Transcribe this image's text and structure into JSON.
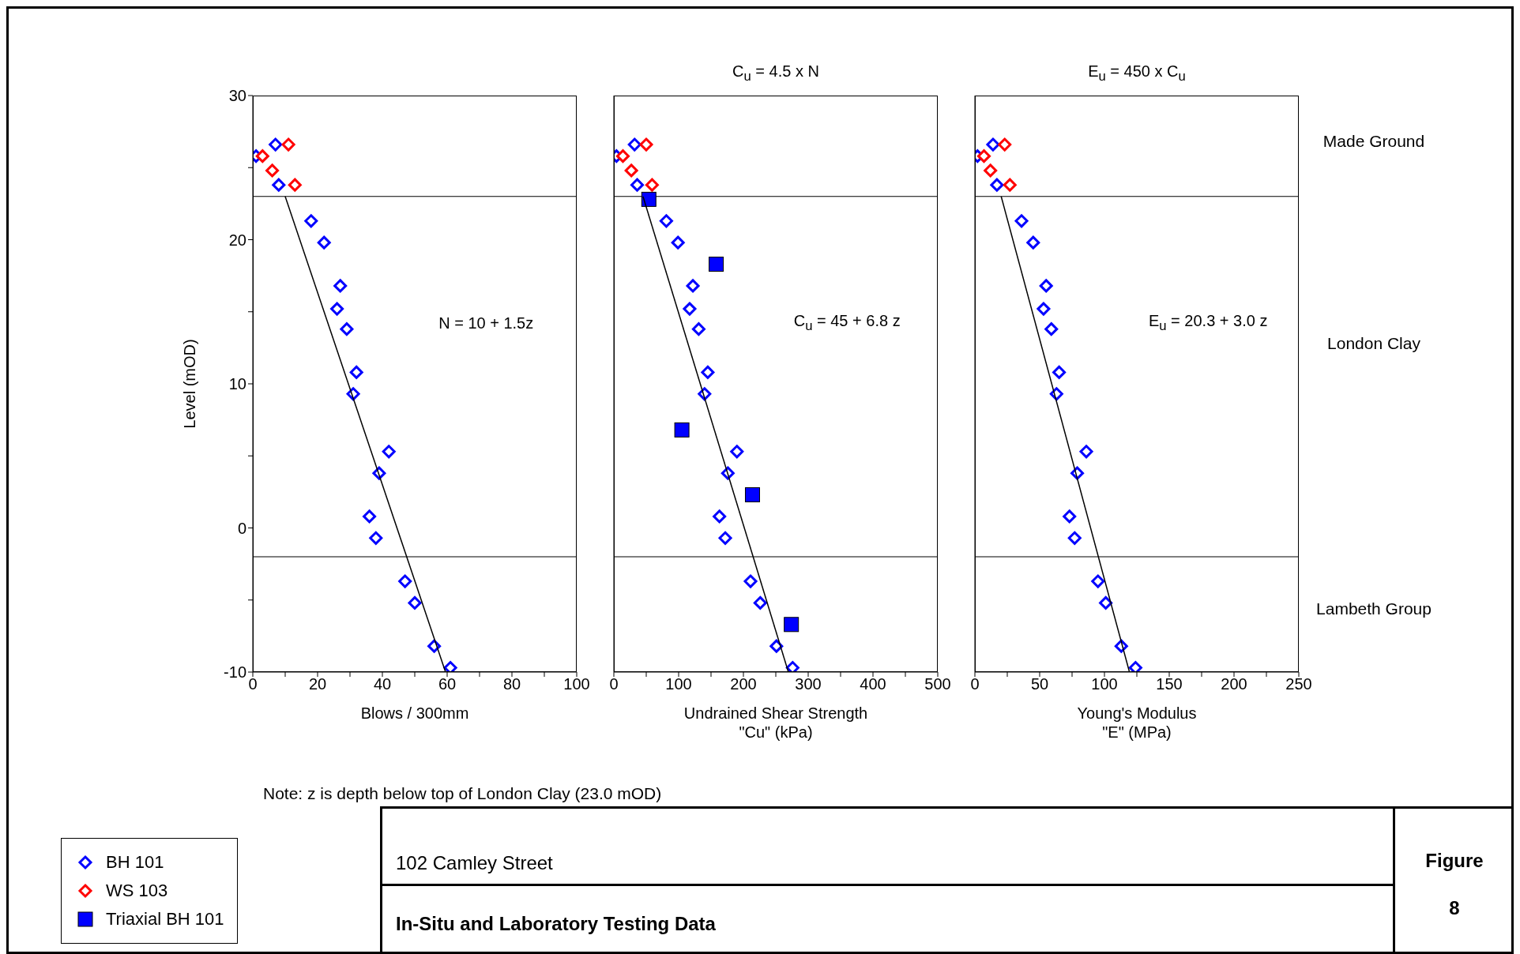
{
  "chart_data": [
    {
      "type": "scatter",
      "xlabel": "Blows / 300mm",
      "ylabel": "Level (mOD)",
      "xlim": [
        0,
        100
      ],
      "xticks": [
        0,
        {
          "value": 10,
          "label": null
        },
        20,
        {
          "value": 30,
          "label": null
        },
        40,
        {
          "value": 50,
          "label": null
        },
        60,
        {
          "value": 70,
          "label": null
        },
        80,
        {
          "value": 90,
          "label": null
        },
        100
      ],
      "ylim": [
        -10,
        30
      ],
      "yticks": [
        -10,
        {
          "value": -5,
          "label": null
        },
        0,
        {
          "value": 5,
          "label": null
        },
        10,
        {
          "value": 15,
          "label": null
        },
        20,
        {
          "value": 25,
          "label": null
        },
        30
      ],
      "ref_lines": [
        {
          "axis": "y",
          "value": 23,
          "color": "#000000"
        },
        {
          "axis": "y",
          "value": -2,
          "color": "#000000"
        }
      ],
      "series": [
        {
          "color": "#0000ff",
          "marker": "diamond",
          "x": [
            1,
            7,
            8,
            18,
            22,
            27,
            26,
            29,
            32,
            31,
            42,
            39,
            36,
            38,
            47,
            50,
            56,
            61
          ],
          "values": [
            25.8,
            26.6,
            23.8,
            21.3,
            19.8,
            16.8,
            15.2,
            13.8,
            10.8,
            9.3,
            5.3,
            3.8,
            0.8,
            -0.7,
            -3.7,
            -5.2,
            -8.2,
            -9.7
          ]
        },
        {
          "color": "#ff0000",
          "marker": "diamond",
          "x": [
            3,
            11,
            6,
            13
          ],
          "values": [
            25.8,
            26.6,
            24.8,
            23.8
          ]
        },
        {
          "type": "line",
          "color": "#000000",
          "marker": "none",
          "x": [
            10,
            59.5
          ],
          "values": [
            23,
            -10
          ]
        }
      ],
      "annotations": [
        "N = 10 + 1.5z",
        "Note: z is depth below top of London Clay (23.0 mOD)",
        "102 Camley Street",
        "In-Situ and Laboratory Testing Data",
        "Figure",
        "8"
      ]
    },
    {
      "type": "scatter",
      "title": "C$_{u}$ = 4.5 x N",
      "xlabel": "Undrained Shear Strength\n\"Cu\" (kPa)",
      "xlim": [
        0,
        500
      ],
      "xticks": [
        0,
        {
          "value": 50,
          "label": null
        },
        100,
        {
          "value": 150,
          "label": null
        },
        200,
        {
          "value": 250,
          "label": null
        },
        300,
        {
          "value": 350,
          "label": null
        },
        400,
        {
          "value": 450,
          "label": null
        },
        500
      ],
      "ylim": [
        -10,
        30
      ],
      "tick_labels": "x",
      "legend": "bottom left",
      "ref_lines": [
        {
          "axis": "y",
          "value": 23,
          "color": "#000000"
        },
        {
          "axis": "y",
          "value": -2,
          "color": "#000000"
        }
      ],
      "series": [
        {
          "name": "BH 101",
          "color": "#0000ff",
          "marker": "diamond",
          "x": [
            4,
            32,
            36,
            81,
            99,
            122,
            117,
            131,
            145,
            140,
            190,
            176,
            163,
            172,
            211,
            226,
            251,
            276
          ],
          "values": [
            25.8,
            26.6,
            23.8,
            21.3,
            19.8,
            16.8,
            15.2,
            13.8,
            10.8,
            9.3,
            5.3,
            3.8,
            0.8,
            -0.7,
            -3.7,
            -5.2,
            -8.2,
            -9.7
          ]
        },
        {
          "name": "WS 103",
          "color": "#ff0000",
          "marker": "diamond",
          "x": [
            14,
            50,
            27,
            59
          ],
          "values": [
            25.8,
            26.6,
            24.8,
            23.8
          ]
        },
        {
          "name": "Triaxial BH 101",
          "color": "#0000ff",
          "marker": "square",
          "x": [
            54,
            158,
            105,
            214,
            274
          ],
          "values": [
            22.8,
            18.3,
            6.8,
            2.3,
            -6.7
          ]
        },
        {
          "type": "line",
          "color": "#000000",
          "marker": "none",
          "x": [
            45,
            269.4
          ],
          "values": [
            23,
            -10
          ]
        }
      ],
      "annotations": [
        "C$_{u}$ = 45 + 6.8 z"
      ]
    },
    {
      "type": "scatter",
      "title": "E$_{u}$ = 450 x C$_{u}$",
      "xlabel": "Young's Modulus\n\"E\" (MPa)",
      "xlim": [
        0,
        250
      ],
      "xticks": [
        0,
        {
          "value": 25,
          "label": null
        },
        50,
        {
          "value": 75,
          "label": null
        },
        100,
        {
          "value": 125,
          "label": null
        },
        150,
        {
          "value": 175,
          "label": null
        },
        200,
        {
          "value": 225,
          "label": null
        },
        250
      ],
      "ylim": [
        -10,
        30
      ],
      "tick_labels": "x",
      "ref_lines": [
        {
          "axis": "y",
          "value": 23,
          "color": "#000000"
        },
        {
          "axis": "y",
          "value": -2,
          "color": "#000000"
        }
      ],
      "series": [
        {
          "color": "#0000ff",
          "marker": "diamond",
          "x": [
            2,
            14,
            17,
            36,
            45,
            55,
            53,
            59,
            65,
            63,
            86,
            79,
            73,
            77,
            95,
            101,
            113,
            124
          ],
          "values": [
            25.8,
            26.6,
            23.8,
            21.3,
            19.8,
            16.8,
            15.2,
            13.8,
            10.8,
            9.3,
            5.3,
            3.8,
            0.8,
            -0.7,
            -3.7,
            -5.2,
            -8.2,
            -9.7
          ]
        },
        {
          "color": "#ff0000",
          "marker": "diamond",
          "x": [
            7,
            23,
            12,
            27
          ],
          "values": [
            25.8,
            26.6,
            24.8,
            23.8
          ]
        },
        {
          "type": "line",
          "color": "#000000",
          "marker": "none",
          "x": [
            20.3,
            119.3
          ],
          "values": [
            23,
            -10
          ]
        }
      ],
      "annotations": [
        "E$_{u}$ = 20.3 + 3.0 z",
        "Made Ground",
        "London Clay",
        "Lambeth Group"
      ]
    }
  ]
}
